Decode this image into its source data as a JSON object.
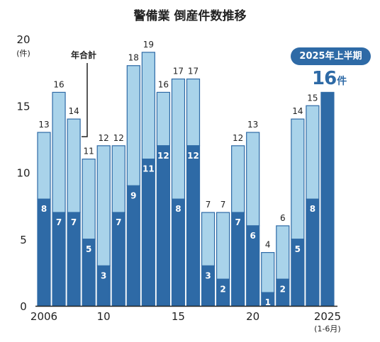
{
  "chart_data": {
    "type": "bar",
    "stacked": true,
    "title": "警備業 倒産件数推移",
    "ylabel": "(件)",
    "ylim": [
      0,
      20
    ],
    "yticks": [
      "0",
      "5",
      "10",
      "15",
      "20"
    ],
    "categories": [
      "2006",
      "2007",
      "2008",
      "2009",
      "2010",
      "2011",
      "2012",
      "2013",
      "2014",
      "2015",
      "2016",
      "2017",
      "2018",
      "2019",
      "2020",
      "2021",
      "2022",
      "2023",
      "2024",
      "2025"
    ],
    "x_tick_labels": [
      {
        "category": "2006",
        "label": "2006"
      },
      {
        "category": "2010",
        "label": "10"
      },
      {
        "category": "2015",
        "label": "15"
      },
      {
        "category": "2020",
        "label": "20"
      },
      {
        "category": "2025",
        "label": "2025",
        "sublabel": "(1-6月)"
      }
    ],
    "series": [
      {
        "values": [
          8,
          7,
          7,
          5,
          3,
          7,
          9,
          11,
          12,
          8,
          12,
          3,
          2,
          7,
          6,
          1,
          2,
          5,
          8,
          16
        ]
      },
      {
        "values": [
          5,
          9,
          7,
          6,
          9,
          5,
          9,
          8,
          4,
          9,
          5,
          4,
          5,
          5,
          7,
          3,
          4,
          9,
          7,
          0
        ]
      }
    ],
    "inner_label_series": 0,
    "inner_labels": [
      "8",
      "7",
      "7",
      "5",
      "3",
      "7",
      "9",
      "11",
      "12",
      "8",
      "12",
      "3",
      "2",
      "7",
      "6",
      "1",
      "2",
      "5",
      "8",
      ""
    ],
    "totals": [
      13,
      16,
      14,
      11,
      12,
      12,
      18,
      19,
      16,
      17,
      17,
      7,
      7,
      12,
      13,
      4,
      6,
      14,
      15,
      16
    ],
    "total_labels": [
      "13",
      "16",
      "14",
      "11",
      "12",
      "12",
      "18",
      "19",
      "16",
      "17",
      "17",
      "7",
      "7",
      "12",
      "13",
      "4",
      "6",
      "14",
      "15",
      ""
    ],
    "colors": {
      "dark": "#2e6aa6",
      "light": "#a9d3ea",
      "accent": "#2e6aa6",
      "axis": "#222222"
    },
    "annotations": {
      "callout": {
        "text": "年合計",
        "category": "2008"
      },
      "highlight": {
        "badge": "2025年上半期",
        "value": "16",
        "unit": "件"
      }
    },
    "grid": false,
    "legend": "none"
  }
}
